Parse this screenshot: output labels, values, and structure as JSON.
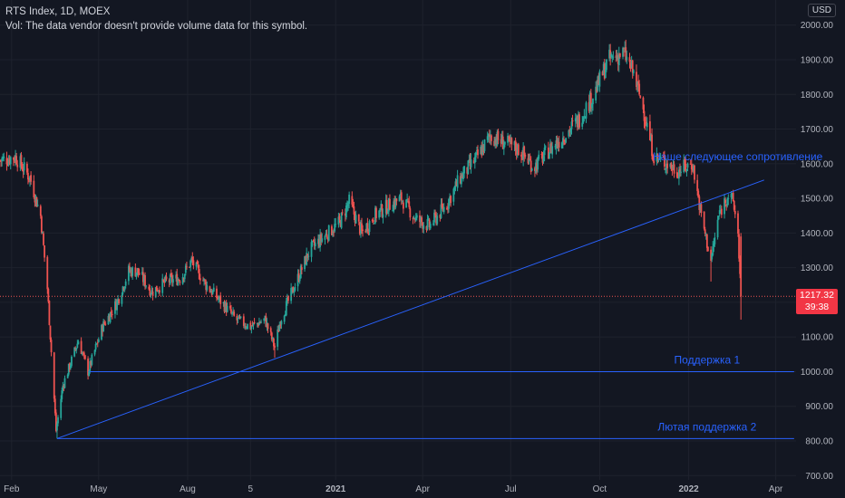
{
  "legend": {
    "symbol_line": "RTS Index, 1D, MOEX",
    "volume_note": "Vol: The data vendor doesn't provide volume data for this symbol."
  },
  "currency_badge": "USD",
  "last_price": {
    "value": "1217.32",
    "countdown": "39:38",
    "color": "#f23645"
  },
  "colors": {
    "background": "#131722",
    "up": "#26a69a",
    "down": "#ef5350",
    "drawing": "#2962ff",
    "text": "#b2b5be"
  },
  "chart_data": {
    "type": "candlestick",
    "title": "RTS Index, 1D, MOEX",
    "y_axis": {
      "position": "right",
      "range": [
        700,
        2000
      ],
      "ticks": [
        "700.00",
        "800.00",
        "900.00",
        "1000.00",
        "1100.00",
        "1200.00",
        "1300.00",
        "1400.00",
        "1500.00",
        "1600.00",
        "1700.00",
        "1800.00",
        "1900.00",
        "2000.00"
      ]
    },
    "x_axis": {
      "range": [
        "2020-01-20",
        "2022-04-22"
      ],
      "ticks": [
        {
          "date": "2020-02-01",
          "label": "Feb",
          "bold": false
        },
        {
          "date": "2020-05-01",
          "label": "May",
          "bold": false
        },
        {
          "date": "2020-08-01",
          "label": "Aug",
          "bold": false
        },
        {
          "date": "2020-10-05",
          "label": "5",
          "bold": false
        },
        {
          "date": "2021-01-01",
          "label": "2021",
          "bold": true
        },
        {
          "date": "2021-04-01",
          "label": "Apr",
          "bold": false
        },
        {
          "date": "2021-07-01",
          "label": "Jul",
          "bold": false
        },
        {
          "date": "2021-10-01",
          "label": "Oct",
          "bold": false
        },
        {
          "date": "2022-01-01",
          "label": "2022",
          "bold": true
        },
        {
          "date": "2022-04-01",
          "label": "Apr",
          "bold": false
        }
      ]
    },
    "grid": true,
    "close_path": [
      [
        "2020-01-20",
        1610
      ],
      [
        "2020-02-05",
        1620
      ],
      [
        "2020-02-20",
        1560
      ],
      [
        "2020-03-02",
        1450
      ],
      [
        "2020-03-09",
        1240
      ],
      [
        "2020-03-18",
        830
      ],
      [
        "2020-03-25",
        960
      ],
      [
        "2020-04-10",
        1090
      ],
      [
        "2020-04-20",
        1000
      ],
      [
        "2020-05-05",
        1130
      ],
      [
        "2020-05-20",
        1200
      ],
      [
        "2020-06-01",
        1290
      ],
      [
        "2020-06-10",
        1290
      ],
      [
        "2020-06-25",
        1230
      ],
      [
        "2020-07-10",
        1260
      ],
      [
        "2020-07-25",
        1270
      ],
      [
        "2020-08-05",
        1320
      ],
      [
        "2020-08-20",
        1250
      ],
      [
        "2020-09-05",
        1200
      ],
      [
        "2020-09-20",
        1150
      ],
      [
        "2020-10-05",
        1130
      ],
      [
        "2020-10-20",
        1150
      ],
      [
        "2020-10-30",
        1070
      ],
      [
        "2020-11-05",
        1150
      ],
      [
        "2020-11-20",
        1250
      ],
      [
        "2020-12-05",
        1350
      ],
      [
        "2020-12-20",
        1390
      ],
      [
        "2021-01-05",
        1430
      ],
      [
        "2021-01-15",
        1490
      ],
      [
        "2021-01-28",
        1400
      ],
      [
        "2021-02-10",
        1450
      ],
      [
        "2021-02-25",
        1480
      ],
      [
        "2021-03-10",
        1500
      ],
      [
        "2021-03-25",
        1440
      ],
      [
        "2021-04-08",
        1420
      ],
      [
        "2021-04-25",
        1480
      ],
      [
        "2021-05-10",
        1560
      ],
      [
        "2021-05-25",
        1610
      ],
      [
        "2021-06-10",
        1680
      ],
      [
        "2021-06-25",
        1660
      ],
      [
        "2021-07-10",
        1640
      ],
      [
        "2021-07-25",
        1590
      ],
      [
        "2021-08-10",
        1640
      ],
      [
        "2021-08-25",
        1680
      ],
      [
        "2021-09-10",
        1730
      ],
      [
        "2021-09-25",
        1800
      ],
      [
        "2021-10-10",
        1900
      ],
      [
        "2021-10-26",
        1920
      ],
      [
        "2021-11-05",
        1860
      ],
      [
        "2021-11-15",
        1760
      ],
      [
        "2021-11-26",
        1620
      ],
      [
        "2021-12-10",
        1600
      ],
      [
        "2021-12-20",
        1580
      ],
      [
        "2022-01-05",
        1600
      ],
      [
        "2022-01-14",
        1450
      ],
      [
        "2022-01-24",
        1320
      ],
      [
        "2022-02-01",
        1450
      ],
      [
        "2022-02-10",
        1510
      ],
      [
        "2022-02-16",
        1490
      ],
      [
        "2022-02-21",
        1400
      ],
      [
        "2022-02-24",
        1217.32
      ]
    ],
    "special_candles": [
      {
        "date": "2020-03-19",
        "low": 807
      },
      {
        "date": "2020-10-30",
        "low": 1040
      },
      {
        "date": "2021-10-26",
        "high": 1932
      },
      {
        "date": "2022-01-24",
        "low": 1260
      },
      {
        "date": "2022-02-24",
        "low": 1150
      }
    ],
    "drawings": [
      {
        "type": "trendline",
        "from": {
          "date": "2020-03-19",
          "price": 807
        },
        "to": {
          "date": "2022-03-20",
          "price": 1553
        }
      },
      {
        "type": "horizontal",
        "price": 1000,
        "from": "2020-04-21",
        "to": "2022-04-20",
        "label": "Поддержка 1"
      },
      {
        "type": "horizontal",
        "price": 807,
        "from": "2020-03-19",
        "to": "2022-04-20",
        "label": "Лютая поддержка 2"
      },
      {
        "type": "text",
        "date": "2021-11-25",
        "price": 1610,
        "label": "Наше следующее сопротивление"
      }
    ],
    "last_price_line": 1217.32
  }
}
